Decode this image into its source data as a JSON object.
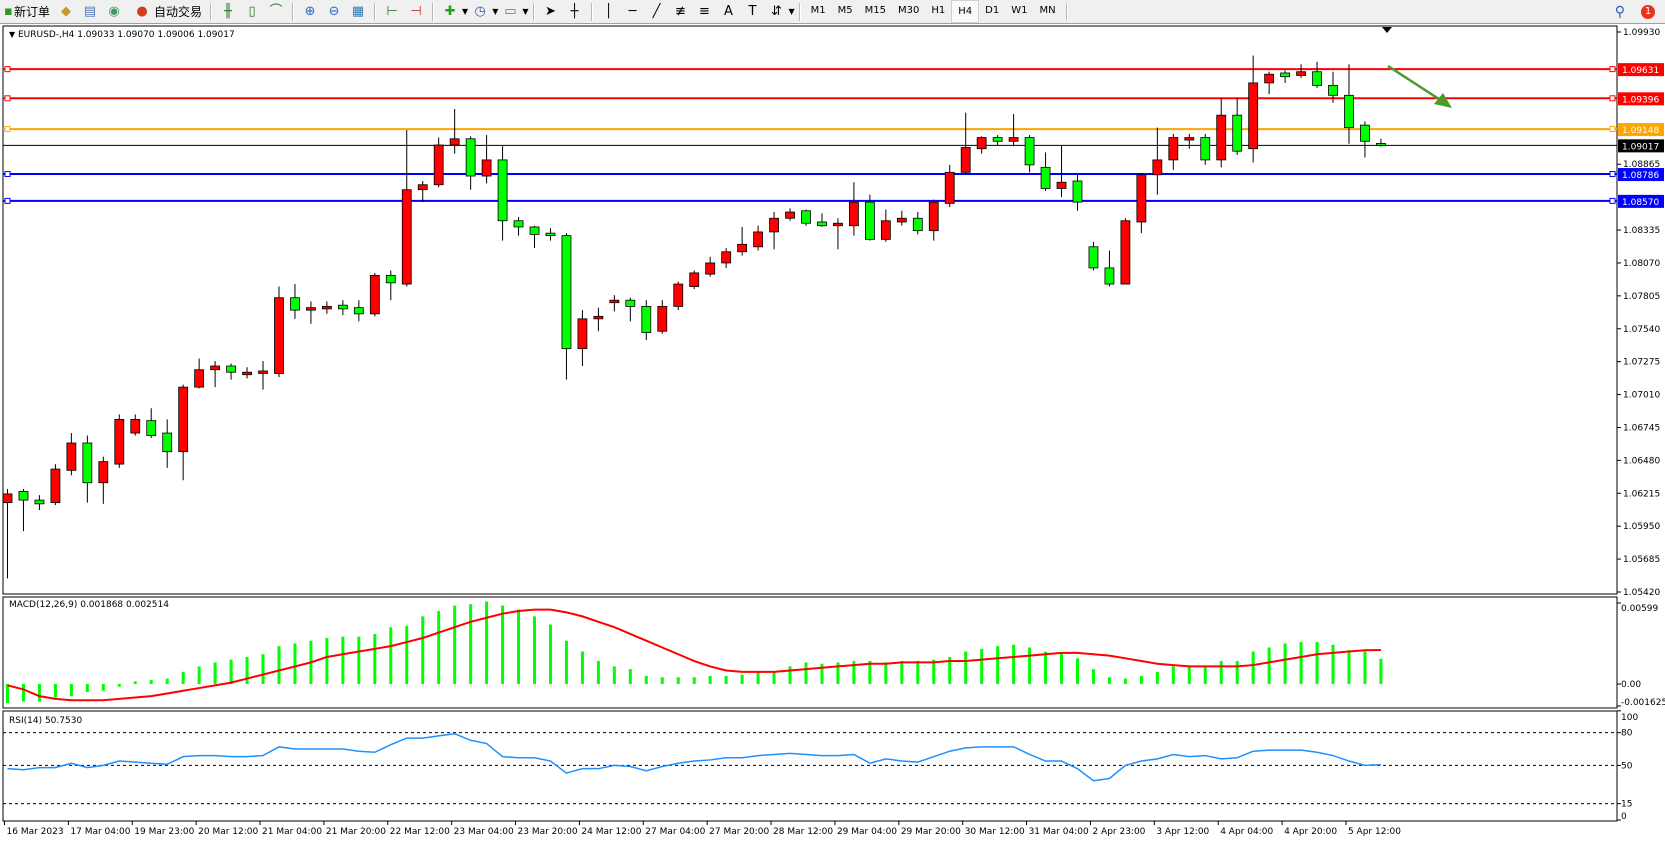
{
  "toolbar": {
    "new_order_label": "新订单",
    "auto_trading_label": "自动交易",
    "icons": [
      "new-order-icon",
      "market-watch-icon",
      "data-window-icon",
      "navigator-icon",
      "auto-trading-icon",
      "bar-chart-icon",
      "candlestick-icon",
      "line-chart-icon",
      "zoom-in-icon",
      "zoom-out-icon",
      "tile-windows-icon",
      "chart-shift-icon",
      "autoscroll-icon",
      "indicators-icon",
      "periods-icon",
      "templates-icon",
      "cursor-icon",
      "crosshair-icon",
      "vertical-line-icon",
      "horizontal-line-icon",
      "trendline-icon",
      "fibonacci-icon",
      "fibo-fan-icon",
      "text-icon",
      "text-label-icon",
      "arrows-icon"
    ],
    "timeframes": [
      "M1",
      "M5",
      "M15",
      "M30",
      "H1",
      "H4",
      "D1",
      "W1",
      "MN"
    ],
    "active_timeframe": "H4",
    "notification_count": "1"
  },
  "chart_data": {
    "type": "candlestick",
    "symbol_header": "EURUSD-,H4  1.09033 1.09070 1.09006 1.09017",
    "up_color": "#ff0000",
    "down_color": "#00ff00",
    "ylim": [
      1.0542,
      1.0993
    ],
    "price_ticks": [
      "1.09930",
      "1.08865",
      "1.08335",
      "1.08070",
      "1.07805",
      "1.07540",
      "1.07275",
      "1.07010",
      "1.06745",
      "1.06480",
      "1.06215",
      "1.05950",
      "1.05685",
      "1.05420"
    ],
    "time_labels": [
      "16 Mar 2023",
      "17 Mar 04:00",
      "19 Mar 23:00",
      "20 Mar 12:00",
      "21 Mar 04:00",
      "21 Mar 20:00",
      "22 Mar 12:00",
      "23 Mar 04:00",
      "23 Mar 20:00",
      "24 Mar 12:00",
      "27 Mar 04:00",
      "27 Mar 20:00",
      "28 Mar 12:00",
      "29 Mar 04:00",
      "29 Mar 20:00",
      "30 Mar 12:00",
      "31 Mar 04:00",
      "2 Apr 23:00",
      "3 Apr 12:00",
      "4 Apr 04:00",
      "4 Apr 20:00",
      "5 Apr 12:00"
    ],
    "ohlc": [
      [
        1.0614,
        1.0625,
        1.0553,
        1.0621
      ],
      [
        1.0623,
        1.0625,
        1.0591,
        1.0616
      ],
      [
        1.0616,
        1.062,
        1.0608,
        1.0613
      ],
      [
        1.0614,
        1.0645,
        1.0612,
        1.0641
      ],
      [
        1.064,
        1.067,
        1.0636,
        1.0662
      ],
      [
        1.0662,
        1.0668,
        1.0614,
        1.063
      ],
      [
        1.063,
        1.0651,
        1.0613,
        1.0647
      ],
      [
        1.0645,
        1.0685,
        1.0642,
        1.0681
      ],
      [
        1.067,
        1.0685,
        1.0668,
        1.0681
      ],
      [
        1.068,
        1.069,
        1.0666,
        1.0668
      ],
      [
        1.067,
        1.0681,
        1.0642,
        1.0655
      ],
      [
        1.0655,
        1.0709,
        1.0632,
        1.0707
      ],
      [
        1.0707,
        1.073,
        1.0706,
        1.0721
      ],
      [
        1.0721,
        1.0728,
        1.0707,
        1.0724
      ],
      [
        1.0724,
        1.0726,
        1.0713,
        1.0719
      ],
      [
        1.0717,
        1.0723,
        1.0714,
        1.0719
      ],
      [
        1.0718,
        1.0728,
        1.0705,
        1.072
      ],
      [
        1.0718,
        1.0788,
        1.0715,
        1.0779
      ],
      [
        1.0779,
        1.079,
        1.0762,
        1.0769
      ],
      [
        1.0769,
        1.0776,
        1.0758,
        1.0771
      ],
      [
        1.077,
        1.0776,
        1.0766,
        1.0772
      ],
      [
        1.0773,
        1.0777,
        1.0765,
        1.077
      ],
      [
        1.0771,
        1.0777,
        1.076,
        1.0766
      ],
      [
        1.0766,
        1.0799,
        1.0764,
        1.0797
      ],
      [
        1.0797,
        1.0801,
        1.0777,
        1.0791
      ],
      [
        1.079,
        1.0914,
        1.0788,
        1.0866
      ],
      [
        1.0866,
        1.0873,
        1.0856,
        1.087
      ],
      [
        1.087,
        1.0908,
        1.0868,
        1.0902
      ],
      [
        1.0902,
        1.0931,
        1.0895,
        1.0907
      ],
      [
        1.0907,
        1.0909,
        1.0866,
        1.0877
      ],
      [
        1.0877,
        1.091,
        1.0871,
        1.089
      ],
      [
        1.089,
        1.0901,
        1.0825,
        1.0841
      ],
      [
        1.0841,
        1.0844,
        1.0829,
        1.0836
      ],
      [
        1.0836,
        1.0837,
        1.0819,
        1.083
      ],
      [
        1.0831,
        1.0835,
        1.0825,
        1.0829
      ],
      [
        1.0829,
        1.0831,
        1.0713,
        1.0738
      ],
      [
        1.0738,
        1.0769,
        1.0724,
        1.0762
      ],
      [
        1.0762,
        1.0771,
        1.0752,
        1.0764
      ],
      [
        1.0775,
        1.0781,
        1.0768,
        1.0777
      ],
      [
        1.0777,
        1.0779,
        1.076,
        1.0772
      ],
      [
        1.0772,
        1.0777,
        1.0745,
        1.0751
      ],
      [
        1.0752,
        1.0777,
        1.075,
        1.0772
      ],
      [
        1.0772,
        1.0792,
        1.0769,
        1.079
      ],
      [
        1.0788,
        1.0801,
        1.0786,
        1.0799
      ],
      [
        1.0798,
        1.0812,
        1.0796,
        1.0807
      ],
      [
        1.0807,
        1.0819,
        1.0803,
        1.0816
      ],
      [
        1.0816,
        1.0836,
        1.0813,
        1.0822
      ],
      [
        1.082,
        1.0837,
        1.0817,
        1.0832
      ],
      [
        1.0832,
        1.0848,
        1.0818,
        1.0843
      ],
      [
        1.0843,
        1.0851,
        1.0841,
        1.0848
      ],
      [
        1.0849,
        1.085,
        1.0837,
        1.0839
      ],
      [
        1.084,
        1.0847,
        1.0836,
        1.0837
      ],
      [
        1.0837,
        1.0843,
        1.0818,
        1.0839
      ],
      [
        1.0837,
        1.0872,
        1.0829,
        1.0856
      ],
      [
        1.0856,
        1.0862,
        1.0825,
        1.0826
      ],
      [
        1.0826,
        1.085,
        1.0824,
        1.0841
      ],
      [
        1.084,
        1.0849,
        1.0837,
        1.0843
      ],
      [
        1.0843,
        1.0848,
        1.083,
        1.0833
      ],
      [
        1.0833,
        1.0858,
        1.0825,
        1.0856
      ],
      [
        1.0855,
        1.0886,
        1.0852,
        1.088
      ],
      [
        1.088,
        1.0928,
        1.0879,
        1.09
      ],
      [
        1.0899,
        1.0909,
        1.0895,
        1.0908
      ],
      [
        1.0908,
        1.091,
        1.0902,
        1.0905
      ],
      [
        1.0905,
        1.0927,
        1.0901,
        1.0908
      ],
      [
        1.0908,
        1.091,
        1.088,
        1.0886
      ],
      [
        1.0884,
        1.0896,
        1.0865,
        1.0867
      ],
      [
        1.0867,
        1.0902,
        1.086,
        1.0872
      ],
      [
        1.0873,
        1.0878,
        1.0849,
        1.0856
      ],
      [
        1.082,
        1.0824,
        1.0801,
        1.0803
      ],
      [
        1.0803,
        1.0817,
        1.0788,
        1.079
      ],
      [
        1.079,
        1.0843,
        1.079,
        1.0841
      ],
      [
        1.084,
        1.0879,
        1.0831,
        1.0878
      ],
      [
        1.0878,
        1.0916,
        1.0862,
        1.089
      ],
      [
        1.089,
        1.0911,
        1.0882,
        1.0908
      ],
      [
        1.0906,
        1.0911,
        1.0899,
        1.0908
      ],
      [
        1.0908,
        1.0911,
        1.0886,
        1.089
      ],
      [
        1.089,
        1.094,
        1.0884,
        1.0926
      ],
      [
        1.0926,
        1.094,
        1.0894,
        1.0897
      ],
      [
        1.0899,
        1.0974,
        1.0888,
        1.0952
      ],
      [
        1.0952,
        1.0961,
        1.0943,
        1.0959
      ],
      [
        1.096,
        1.0962,
        1.0952,
        1.0957
      ],
      [
        1.0958,
        1.0967,
        1.0956,
        1.0961
      ],
      [
        1.0961,
        1.0969,
        1.0948,
        1.095
      ],
      [
        1.095,
        1.0961,
        1.0936,
        1.0942
      ],
      [
        1.0942,
        1.0967,
        1.0903,
        1.0916
      ],
      [
        1.0918,
        1.0921,
        1.0892,
        1.0905
      ],
      [
        1.09033,
        1.0907,
        1.09006,
        1.09017
      ]
    ],
    "current_price": {
      "value": 1.09017,
      "label": "1.09017",
      "color": "#000000"
    },
    "horizontal_lines": [
      {
        "value": 1.09631,
        "label": "1.09631",
        "color": "#ff0000"
      },
      {
        "value": 1.09396,
        "label": "1.09396",
        "color": "#ff0000"
      },
      {
        "value": 1.09148,
        "label": "1.09148",
        "color": "#ffa500"
      },
      {
        "value": 1.08786,
        "label": "1.08786",
        "color": "#0000ff"
      },
      {
        "value": 1.0857,
        "label": "1.08570",
        "color": "#0000ff"
      }
    ],
    "annotation_arrow": {
      "color": "#4c9a2a",
      "direction": "down-right"
    },
    "macd": {
      "header": "MACD(12,26,9) 0.001868 0.002514",
      "ylim": [
        -0.001625,
        0.00599
      ],
      "ticks": [
        "0.00599",
        "0.00",
        "-0.001625"
      ],
      "histogram_color": "#00ff00",
      "signal_color": "#ff0000",
      "histogram": [
        -0.0014,
        -0.0013,
        -0.0013,
        -0.001,
        -0.0009,
        -0.0006,
        -0.0005,
        -0.0002,
        0.0002,
        0.0003,
        0.0004,
        0.0009,
        0.0013,
        0.0016,
        0.0018,
        0.002,
        0.0022,
        0.0028,
        0.003,
        0.0032,
        0.0034,
        0.0035,
        0.0035,
        0.0037,
        0.0042,
        0.0043,
        0.005,
        0.0054,
        0.0058,
        0.0059,
        0.0061,
        0.0058,
        0.0055,
        0.005,
        0.0044,
        0.0032,
        0.0024,
        0.0017,
        0.0013,
        0.0011,
        0.0006,
        0.0005,
        0.0005,
        0.0005,
        0.0006,
        0.0006,
        0.0007,
        0.0009,
        0.0009,
        0.0013,
        0.0016,
        0.0015,
        0.0016,
        0.0017,
        0.0017,
        0.0016,
        0.0017,
        0.0017,
        0.0018,
        0.002,
        0.0024,
        0.0026,
        0.0028,
        0.0029,
        0.0027,
        0.0024,
        0.0023,
        0.0019,
        0.0011,
        0.0005,
        0.0004,
        0.0006,
        0.0009,
        0.0013,
        0.0013,
        0.0013,
        0.0017,
        0.0017,
        0.0024,
        0.0027,
        0.003,
        0.0031,
        0.0031,
        0.0029,
        0.0025,
        0.0024,
        0.001868
      ],
      "signal": [
        -0.0001,
        -0.0004,
        -0.0009,
        -0.0011,
        -0.0012,
        -0.0012,
        -0.0012,
        -0.0011,
        -0.001,
        -0.0009,
        -0.0007,
        -0.0005,
        -0.0003,
        -0.0001,
        0.0001,
        0.0004,
        0.0007,
        0.001,
        0.0013,
        0.0016,
        0.002,
        0.0022,
        0.0024,
        0.0026,
        0.0028,
        0.0031,
        0.0034,
        0.0038,
        0.0042,
        0.0046,
        0.0049,
        0.0052,
        0.0054,
        0.0055,
        0.0055,
        0.0053,
        0.005,
        0.0046,
        0.0042,
        0.0037,
        0.0032,
        0.0027,
        0.0022,
        0.0017,
        0.0013,
        0.001,
        0.0009,
        0.0009,
        0.0009,
        0.001,
        0.0011,
        0.0012,
        0.0013,
        0.0014,
        0.0015,
        0.0015,
        0.0016,
        0.0016,
        0.0016,
        0.0017,
        0.0017,
        0.0018,
        0.0019,
        0.002,
        0.0021,
        0.0022,
        0.0023,
        0.0023,
        0.0022,
        0.0021,
        0.0019,
        0.0017,
        0.0015,
        0.0014,
        0.0013,
        0.0013,
        0.0013,
        0.0013,
        0.0014,
        0.0016,
        0.0018,
        0.002,
        0.0022,
        0.0023,
        0.0024,
        0.0025,
        0.002514
      ]
    },
    "rsi": {
      "header": "RSI(14) 50.7530",
      "ylim": [
        0,
        100
      ],
      "ticks": [
        "100",
        "80",
        "50",
        "15",
        "0"
      ],
      "levels": [
        80,
        50,
        15
      ],
      "color": "#1e90ff",
      "values": [
        47,
        46,
        48,
        48,
        52,
        48,
        50,
        54,
        53,
        52,
        51,
        58,
        59,
        59,
        58,
        58,
        59,
        67,
        65,
        65,
        65,
        65,
        63,
        62,
        69,
        75,
        75,
        77,
        79,
        73,
        70,
        58,
        57,
        57,
        54,
        43,
        47,
        47,
        50,
        49,
        45,
        49,
        52,
        54,
        55,
        57,
        57,
        59,
        60,
        61,
        60,
        59,
        59,
        60,
        52,
        56,
        54,
        53,
        58,
        63,
        66,
        67,
        67,
        67,
        60,
        54,
        54,
        47,
        36,
        38,
        50,
        54,
        56,
        60,
        58,
        59,
        56,
        57,
        63,
        64,
        64,
        64,
        62,
        59,
        54,
        50,
        50.753
      ]
    }
  }
}
